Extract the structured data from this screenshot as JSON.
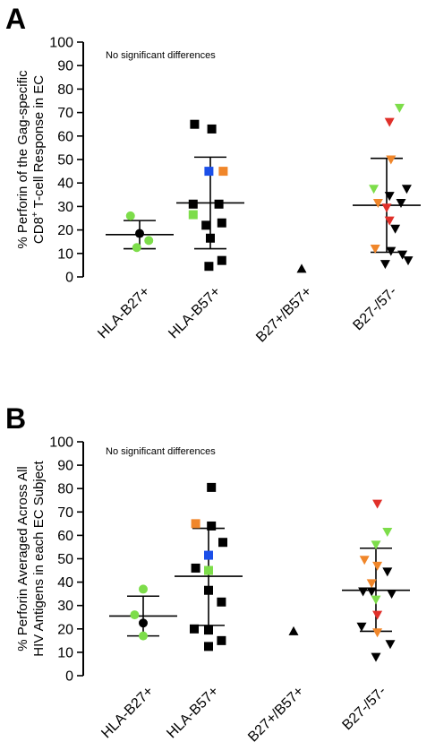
{
  "chart_data": [
    {
      "panel_label": "A",
      "type": "scatter",
      "annotation": "No significant differences",
      "ylabel_lines": [
        "% Perforin of the Gag-specific",
        "CD8",
        "+",
        " T-cell Response in EC"
      ],
      "ylim": [
        0,
        100
      ],
      "yticks": [
        0,
        10,
        20,
        30,
        40,
        50,
        60,
        70,
        80,
        90,
        100
      ],
      "categories": [
        "HLA-B27+",
        "HLA-B57+",
        "B27+/B57+",
        "B27-/57-"
      ],
      "colors": {
        "black": "#000000",
        "green": "#7ddd4a",
        "orange": "#f0862a",
        "blue": "#1b4fe8",
        "red": "#e0302a"
      },
      "groups": [
        {
          "category": "HLA-B27+",
          "marker": "circle",
          "mean": 18,
          "sd": [
            12,
            24
          ],
          "points": [
            {
              "y": 26,
              "dx": -0.32,
              "color": "green"
            },
            {
              "y": 18.5,
              "dx": 0.0,
              "color": "black"
            },
            {
              "y": 15.5,
              "dx": 0.32,
              "color": "green"
            },
            {
              "y": 12.5,
              "dx": -0.1,
              "color": "green"
            }
          ]
        },
        {
          "category": "HLA-B57+",
          "marker": "square",
          "mean": 31.5,
          "sd": [
            12,
            51
          ],
          "points": [
            {
              "y": 65,
              "dx": -0.55,
              "color": "black"
            },
            {
              "y": 63,
              "dx": 0.05,
              "color": "black"
            },
            {
              "y": 45,
              "dx": -0.05,
              "color": "blue"
            },
            {
              "y": 45,
              "dx": 0.45,
              "color": "orange"
            },
            {
              "y": 31,
              "dx": -0.6,
              "color": "black"
            },
            {
              "y": 31,
              "dx": 0.3,
              "color": "black"
            },
            {
              "y": 26.5,
              "dx": -0.6,
              "color": "green"
            },
            {
              "y": 23,
              "dx": 0.4,
              "color": "black"
            },
            {
              "y": 22,
              "dx": -0.15,
              "color": "black"
            },
            {
              "y": 16.5,
              "dx": 0.0,
              "color": "black"
            },
            {
              "y": 7,
              "dx": 0.4,
              "color": "black"
            },
            {
              "y": 4.5,
              "dx": -0.05,
              "color": "black"
            }
          ]
        },
        {
          "category": "B27+/B57+",
          "marker": "triangle-up",
          "mean": null,
          "sd": null,
          "points": [
            {
              "y": 3.5,
              "dx": 0.0,
              "color": "black"
            }
          ]
        },
        {
          "category": "B27-/57-",
          "marker": "triangle-down",
          "mean": 30.5,
          "sd": [
            10.5,
            50.5
          ],
          "points": [
            {
              "y": 72,
              "dx": 0.45,
              "color": "green"
            },
            {
              "y": 66,
              "dx": 0.1,
              "color": "red"
            },
            {
              "y": 50,
              "dx": 0.15,
              "color": "orange"
            },
            {
              "y": 37.5,
              "dx": -0.45,
              "color": "green"
            },
            {
              "y": 37.5,
              "dx": 0.7,
              "color": "black"
            },
            {
              "y": 34.5,
              "dx": 0.1,
              "color": "black"
            },
            {
              "y": 31.5,
              "dx": -0.3,
              "color": "orange"
            },
            {
              "y": 31.5,
              "dx": 0.5,
              "color": "black"
            },
            {
              "y": 29.5,
              "dx": 0.0,
              "color": "red"
            },
            {
              "y": 24,
              "dx": 0.1,
              "color": "red"
            },
            {
              "y": 20.5,
              "dx": 0.3,
              "color": "black"
            },
            {
              "y": 12,
              "dx": -0.4,
              "color": "orange"
            },
            {
              "y": 11,
              "dx": 0.15,
              "color": "black"
            },
            {
              "y": 9.5,
              "dx": 0.55,
              "color": "black"
            },
            {
              "y": 7,
              "dx": 0.75,
              "color": "black"
            },
            {
              "y": 5.5,
              "dx": -0.05,
              "color": "black"
            }
          ]
        }
      ]
    },
    {
      "panel_label": "B",
      "type": "scatter",
      "annotation": "No significant differences",
      "ylabel_lines": [
        "% Perforin Averaged Across All",
        "HIV Antigens in each EC Subject"
      ],
      "ylim": [
        0,
        100
      ],
      "yticks": [
        0,
        10,
        20,
        30,
        40,
        50,
        60,
        70,
        80,
        90,
        100
      ],
      "categories": [
        "HLA-B27+",
        "HLA-B57+",
        "B27+/B57+",
        "B27-/57-"
      ],
      "colors": {
        "black": "#000000",
        "green": "#7ddd4a",
        "orange": "#f0862a",
        "blue": "#1b4fe8",
        "red": "#e0302a"
      },
      "groups": [
        {
          "category": "HLA-B27+",
          "marker": "circle",
          "mean": 25.5,
          "sd": [
            17,
            34
          ],
          "points": [
            {
              "y": 37,
              "dx": 0.0,
              "color": "green"
            },
            {
              "y": 26,
              "dx": -0.3,
              "color": "green"
            },
            {
              "y": 22.5,
              "dx": 0.0,
              "color": "black"
            },
            {
              "y": 17,
              "dx": 0.0,
              "color": "green"
            }
          ]
        },
        {
          "category": "HLA-B57+",
          "marker": "square",
          "mean": 42.5,
          "sd": [
            21.5,
            63
          ],
          "points": [
            {
              "y": 80.5,
              "dx": 0.1,
              "color": "black"
            },
            {
              "y": 65,
              "dx": -0.45,
              "color": "orange"
            },
            {
              "y": 64,
              "dx": 0.1,
              "color": "black"
            },
            {
              "y": 57,
              "dx": 0.5,
              "color": "black"
            },
            {
              "y": 51.5,
              "dx": 0.0,
              "color": "blue"
            },
            {
              "y": 46,
              "dx": -0.45,
              "color": "black"
            },
            {
              "y": 45,
              "dx": 0.0,
              "color": "green"
            },
            {
              "y": 36.5,
              "dx": 0.0,
              "color": "black"
            },
            {
              "y": 31.5,
              "dx": 0.45,
              "color": "black"
            },
            {
              "y": 20,
              "dx": -0.5,
              "color": "black"
            },
            {
              "y": 19.5,
              "dx": 0.0,
              "color": "black"
            },
            {
              "y": 15,
              "dx": 0.45,
              "color": "black"
            },
            {
              "y": 12.5,
              "dx": 0.0,
              "color": "black"
            }
          ]
        },
        {
          "category": "B27+/B57+",
          "marker": "triangle-up",
          "mean": null,
          "sd": null,
          "points": [
            {
              "y": 19,
              "dx": 0.0,
              "color": "black"
            }
          ]
        },
        {
          "category": "B27-/57-",
          "marker": "triangle-down",
          "mean": 36.5,
          "sd": [
            19,
            54.5
          ],
          "points": [
            {
              "y": 73.5,
              "dx": 0.05,
              "color": "red"
            },
            {
              "y": 61.5,
              "dx": 0.4,
              "color": "green"
            },
            {
              "y": 56,
              "dx": 0.0,
              "color": "green"
            },
            {
              "y": 49.5,
              "dx": -0.4,
              "color": "orange"
            },
            {
              "y": 47,
              "dx": 0.05,
              "color": "orange"
            },
            {
              "y": 44.5,
              "dx": 0.4,
              "color": "black"
            },
            {
              "y": 39.5,
              "dx": -0.15,
              "color": "orange"
            },
            {
              "y": 36,
              "dx": -0.45,
              "color": "black"
            },
            {
              "y": 36,
              "dx": -0.15,
              "color": "black"
            },
            {
              "y": 35,
              "dx": 0.55,
              "color": "black"
            },
            {
              "y": 32.5,
              "dx": 0.0,
              "color": "green"
            },
            {
              "y": 26,
              "dx": 0.05,
              "color": "red"
            },
            {
              "y": 21,
              "dx": -0.5,
              "color": "black"
            },
            {
              "y": 18.5,
              "dx": 0.05,
              "color": "orange"
            },
            {
              "y": 13.5,
              "dx": 0.5,
              "color": "black"
            },
            {
              "y": 8,
              "dx": 0.0,
              "color": "black"
            }
          ]
        }
      ]
    }
  ]
}
